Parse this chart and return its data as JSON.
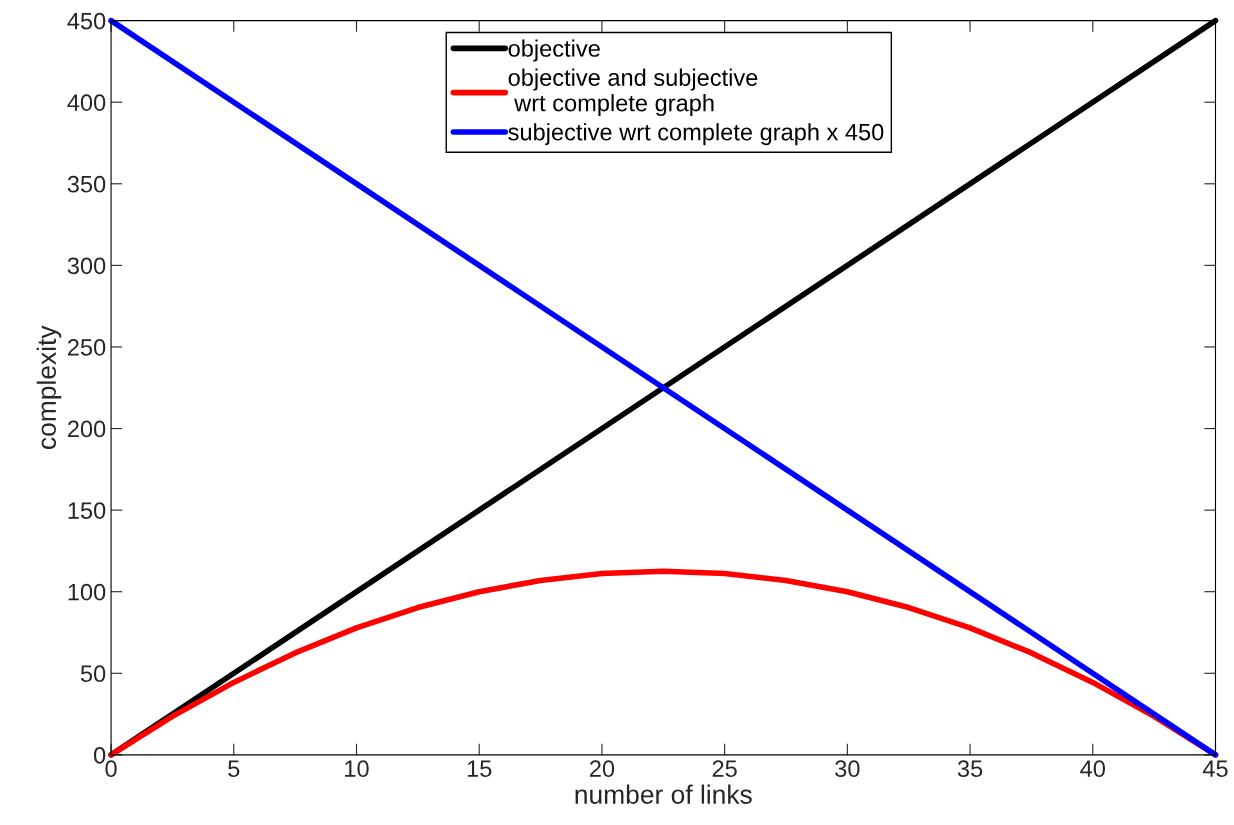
{
  "chart_data": {
    "type": "line",
    "xlabel": "number of links",
    "ylabel": "complexity",
    "series": [
      {
        "name": "objective",
        "color": "#000000",
        "x": [
          0,
          45
        ],
        "values": [
          0,
          450
        ]
      },
      {
        "name": "objective and subjective\n wrt complete graph",
        "color": "#ff0000",
        "x": [
          0,
          2.5,
          5,
          7.5,
          10,
          12.5,
          15,
          17.5,
          20,
          22.5,
          25,
          27.5,
          30,
          32.5,
          35,
          37.5,
          40,
          42.5,
          45
        ],
        "values": [
          0,
          23.6,
          44.4,
          62.5,
          77.8,
          90.3,
          100,
          106.9,
          111.1,
          112.5,
          111.1,
          106.9,
          100,
          90.3,
          77.8,
          62.5,
          44.4,
          23.6,
          0
        ]
      },
      {
        "name": "subjective wrt complete graph x 450",
        "color": "#0000ff",
        "x": [
          0,
          45
        ],
        "values": [
          450,
          0
        ]
      }
    ],
    "xlim": [
      0,
      45
    ],
    "xticks": [
      0,
      5,
      10,
      15,
      20,
      25,
      30,
      35,
      40,
      45
    ],
    "ylim": [
      0,
      450
    ],
    "yticks": [
      0,
      50,
      100,
      150,
      200,
      250,
      300,
      350,
      400,
      450
    ],
    "grid": false,
    "legend": "top",
    "marker": "none",
    "line_style": "solid"
  }
}
